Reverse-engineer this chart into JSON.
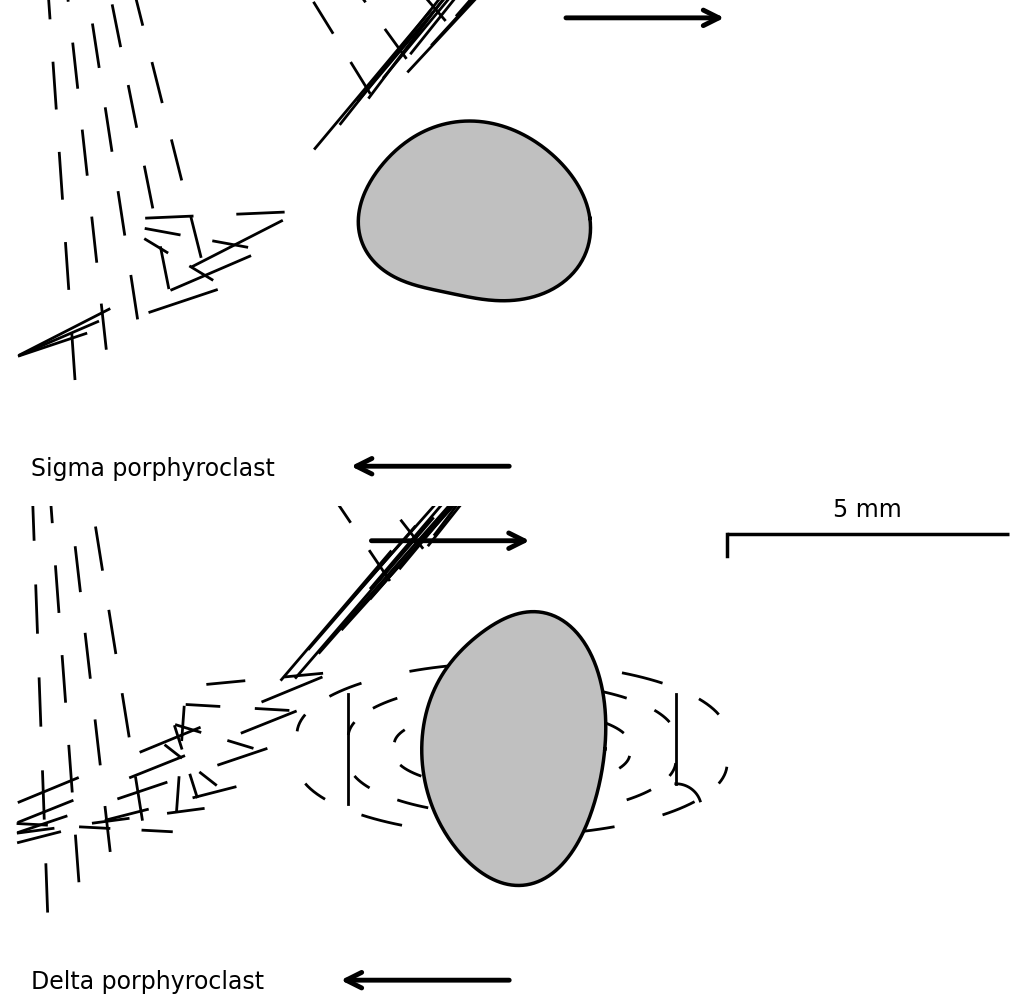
{
  "bg_color": "#ffffff",
  "line_color": "#000000",
  "fill_color": "#c0c0c0",
  "sigma_label": "Sigma porphyroclast",
  "delta_label": "Delta porphyroclast",
  "scale_label": "5 mm",
  "label_fontsize": 17,
  "scale_fontsize": 17,
  "lw_fold": 2.0,
  "lw_clast": 2.5,
  "lw_arrow": 3.5,
  "arrow_scale": 28
}
